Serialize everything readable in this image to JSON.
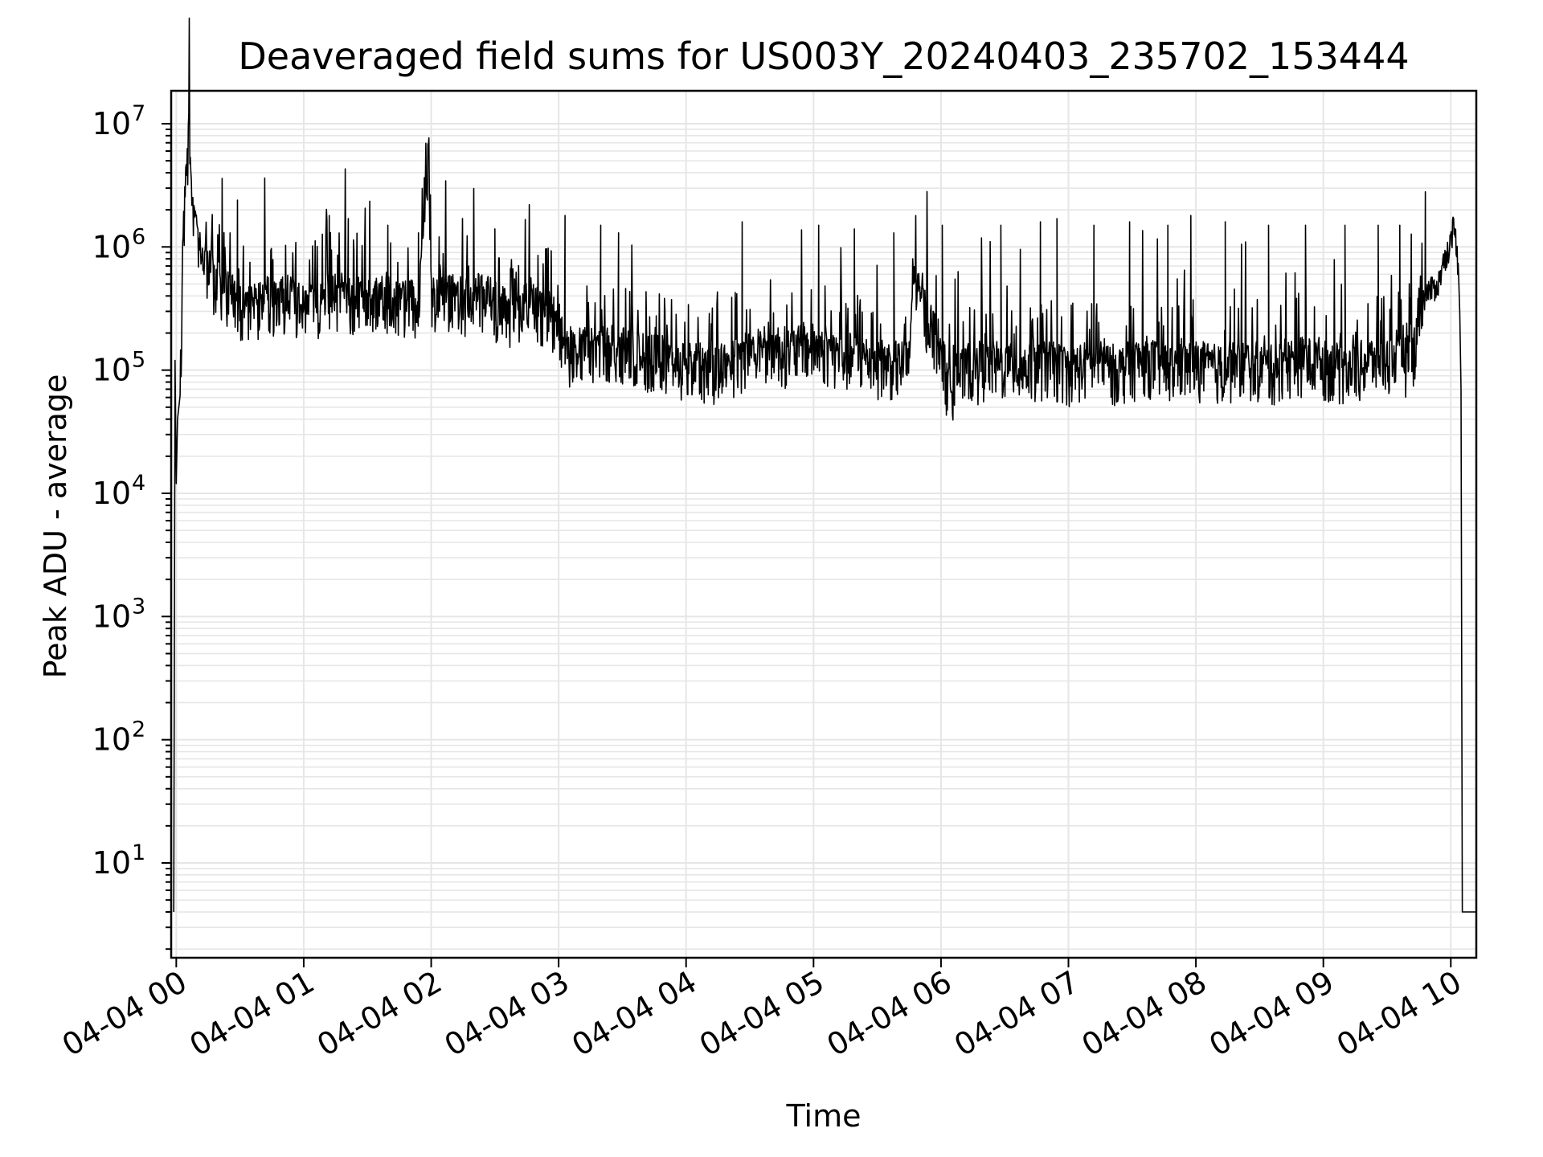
{
  "chart_data": {
    "type": "line",
    "title": "Deaveraged field sums for US003Y_20240403_235702_153444",
    "xlabel": "Time",
    "ylabel": "Peak ADU - average",
    "yscale": "log",
    "grid": true,
    "legend": "none",
    "line_color": "#000000",
    "grid_color": "#e6e6e6",
    "x_tick_labels": [
      "04-04 00",
      "04-04 01",
      "04-04 02",
      "04-04 03",
      "04-04 04",
      "04-04 05",
      "04-04 06",
      "04-04 07",
      "04-04 08",
      "04-04 09",
      "04-04 10"
    ],
    "x_tick_hours": [
      0,
      1,
      2,
      3,
      4,
      5,
      6,
      7,
      8,
      9,
      10
    ],
    "y_tick_exponents": [
      1,
      2,
      3,
      4,
      5,
      6,
      7
    ],
    "y_tick_labels": [
      {
        "base": "10",
        "exp": "1"
      },
      {
        "base": "10",
        "exp": "2"
      },
      {
        "base": "10",
        "exp": "3"
      },
      {
        "base": "10",
        "exp": "4"
      },
      {
        "base": "10",
        "exp": "5"
      },
      {
        "base": "10",
        "exp": "6"
      },
      {
        "base": "10",
        "exp": "7"
      }
    ],
    "xlim_hours": [
      -0.04,
      10.2
    ],
    "ylim": [
      1.7,
      18500000
    ],
    "series": [
      {
        "points_hours_vs_value": [
          [
            -0.02,
            4
          ],
          [
            -0.01,
            120000
          ],
          [
            0.0,
            12000
          ],
          [
            0.01,
            40000
          ],
          [
            0.03,
            60000
          ],
          [
            0.05,
            800000
          ],
          [
            0.07,
            3000000
          ],
          [
            0.09,
            5000000
          ],
          [
            0.1,
            9000000
          ],
          [
            0.12,
            2000000
          ],
          [
            0.15,
            1500000
          ],
          [
            0.2,
            800000
          ],
          [
            0.3,
            550000
          ],
          [
            0.4,
            400000
          ],
          [
            0.5,
            350000
          ],
          [
            0.6,
            300000
          ],
          [
            0.7,
            400000
          ],
          [
            0.8,
            350000
          ],
          [
            0.9,
            380000
          ],
          [
            1.0,
            330000
          ],
          [
            1.1,
            350000
          ],
          [
            1.2,
            420000
          ],
          [
            1.3,
            400000
          ],
          [
            1.4,
            360000
          ],
          [
            1.5,
            380000
          ],
          [
            1.6,
            400000
          ],
          [
            1.7,
            380000
          ],
          [
            1.8,
            360000
          ],
          [
            1.9,
            330000
          ],
          [
            1.98,
            5500000
          ],
          [
            2.0,
            400000
          ],
          [
            2.1,
            420000
          ],
          [
            2.2,
            370000
          ],
          [
            2.3,
            350000
          ],
          [
            2.4,
            400000
          ],
          [
            2.5,
            330000
          ],
          [
            2.6,
            300000
          ],
          [
            2.7,
            300000
          ],
          [
            2.8,
            330000
          ],
          [
            2.9,
            280000
          ],
          [
            3.0,
            250000
          ],
          [
            3.05,
            130000
          ],
          [
            3.2,
            140000
          ],
          [
            3.4,
            150000
          ],
          [
            3.6,
            130000
          ],
          [
            3.8,
            120000
          ],
          [
            4.0,
            110000
          ],
          [
            4.2,
            100000
          ],
          [
            4.4,
            120000
          ],
          [
            4.6,
            160000
          ],
          [
            4.8,
            140000
          ],
          [
            5.0,
            150000
          ],
          [
            5.2,
            130000
          ],
          [
            5.4,
            120000
          ],
          [
            5.6,
            110000
          ],
          [
            5.75,
            110000
          ],
          [
            5.78,
            500000
          ],
          [
            5.9,
            250000
          ],
          [
            6.0,
            150000
          ],
          [
            6.05,
            70000
          ],
          [
            6.2,
            100000
          ],
          [
            6.4,
            110000
          ],
          [
            6.6,
            100000
          ],
          [
            6.8,
            110000
          ],
          [
            7.0,
            100000
          ],
          [
            7.2,
            110000
          ],
          [
            7.4,
            100000
          ],
          [
            7.6,
            120000
          ],
          [
            7.8,
            100000
          ],
          [
            8.0,
            110000
          ],
          [
            8.2,
            100000
          ],
          [
            8.4,
            110000
          ],
          [
            8.6,
            100000
          ],
          [
            8.8,
            120000
          ],
          [
            9.0,
            110000
          ],
          [
            9.2,
            100000
          ],
          [
            9.4,
            120000
          ],
          [
            9.6,
            120000
          ],
          [
            9.7,
            120000
          ],
          [
            9.75,
            300000
          ],
          [
            9.8,
            420000
          ],
          [
            9.9,
            500000
          ],
          [
            9.95,
            800000
          ],
          [
            10.0,
            1100000
          ],
          [
            10.02,
            1500000
          ],
          [
            10.05,
            1000000
          ],
          [
            10.07,
            300000
          ],
          [
            10.08,
            70000
          ],
          [
            10.09,
            4
          ],
          [
            10.1,
            4
          ],
          [
            10.2,
            4
          ]
        ],
        "spikes_hours_vs_value": [
          [
            0.36,
            3600000
          ],
          [
            0.48,
            2400000
          ],
          [
            1.2,
            1800000
          ],
          [
            1.35,
            1700000
          ],
          [
            1.66,
            1500000
          ],
          [
            1.9,
            1300000
          ],
          [
            2.5,
            1400000
          ],
          [
            3.05,
            1800000
          ],
          [
            3.33,
            1500000
          ],
          [
            3.47,
            1300000
          ],
          [
            4.44,
            1600000
          ],
          [
            5.04,
            1500000
          ],
          [
            5.32,
            1400000
          ],
          [
            5.63,
            1300000
          ],
          [
            6.01,
            1500000
          ],
          [
            6.47,
            1500000
          ],
          [
            6.78,
            1600000
          ],
          [
            6.91,
            1700000
          ],
          [
            7.2,
            1500000
          ],
          [
            7.48,
            1600000
          ],
          [
            7.78,
            1500000
          ],
          [
            7.96,
            1800000
          ],
          [
            8.23,
            1600000
          ],
          [
            8.57,
            1500000
          ],
          [
            8.86,
            1500000
          ],
          [
            9.17,
            1500000
          ],
          [
            9.43,
            1500000
          ],
          [
            9.6,
            1500000
          ],
          [
            9.8,
            2800000
          ]
        ]
      }
    ]
  }
}
